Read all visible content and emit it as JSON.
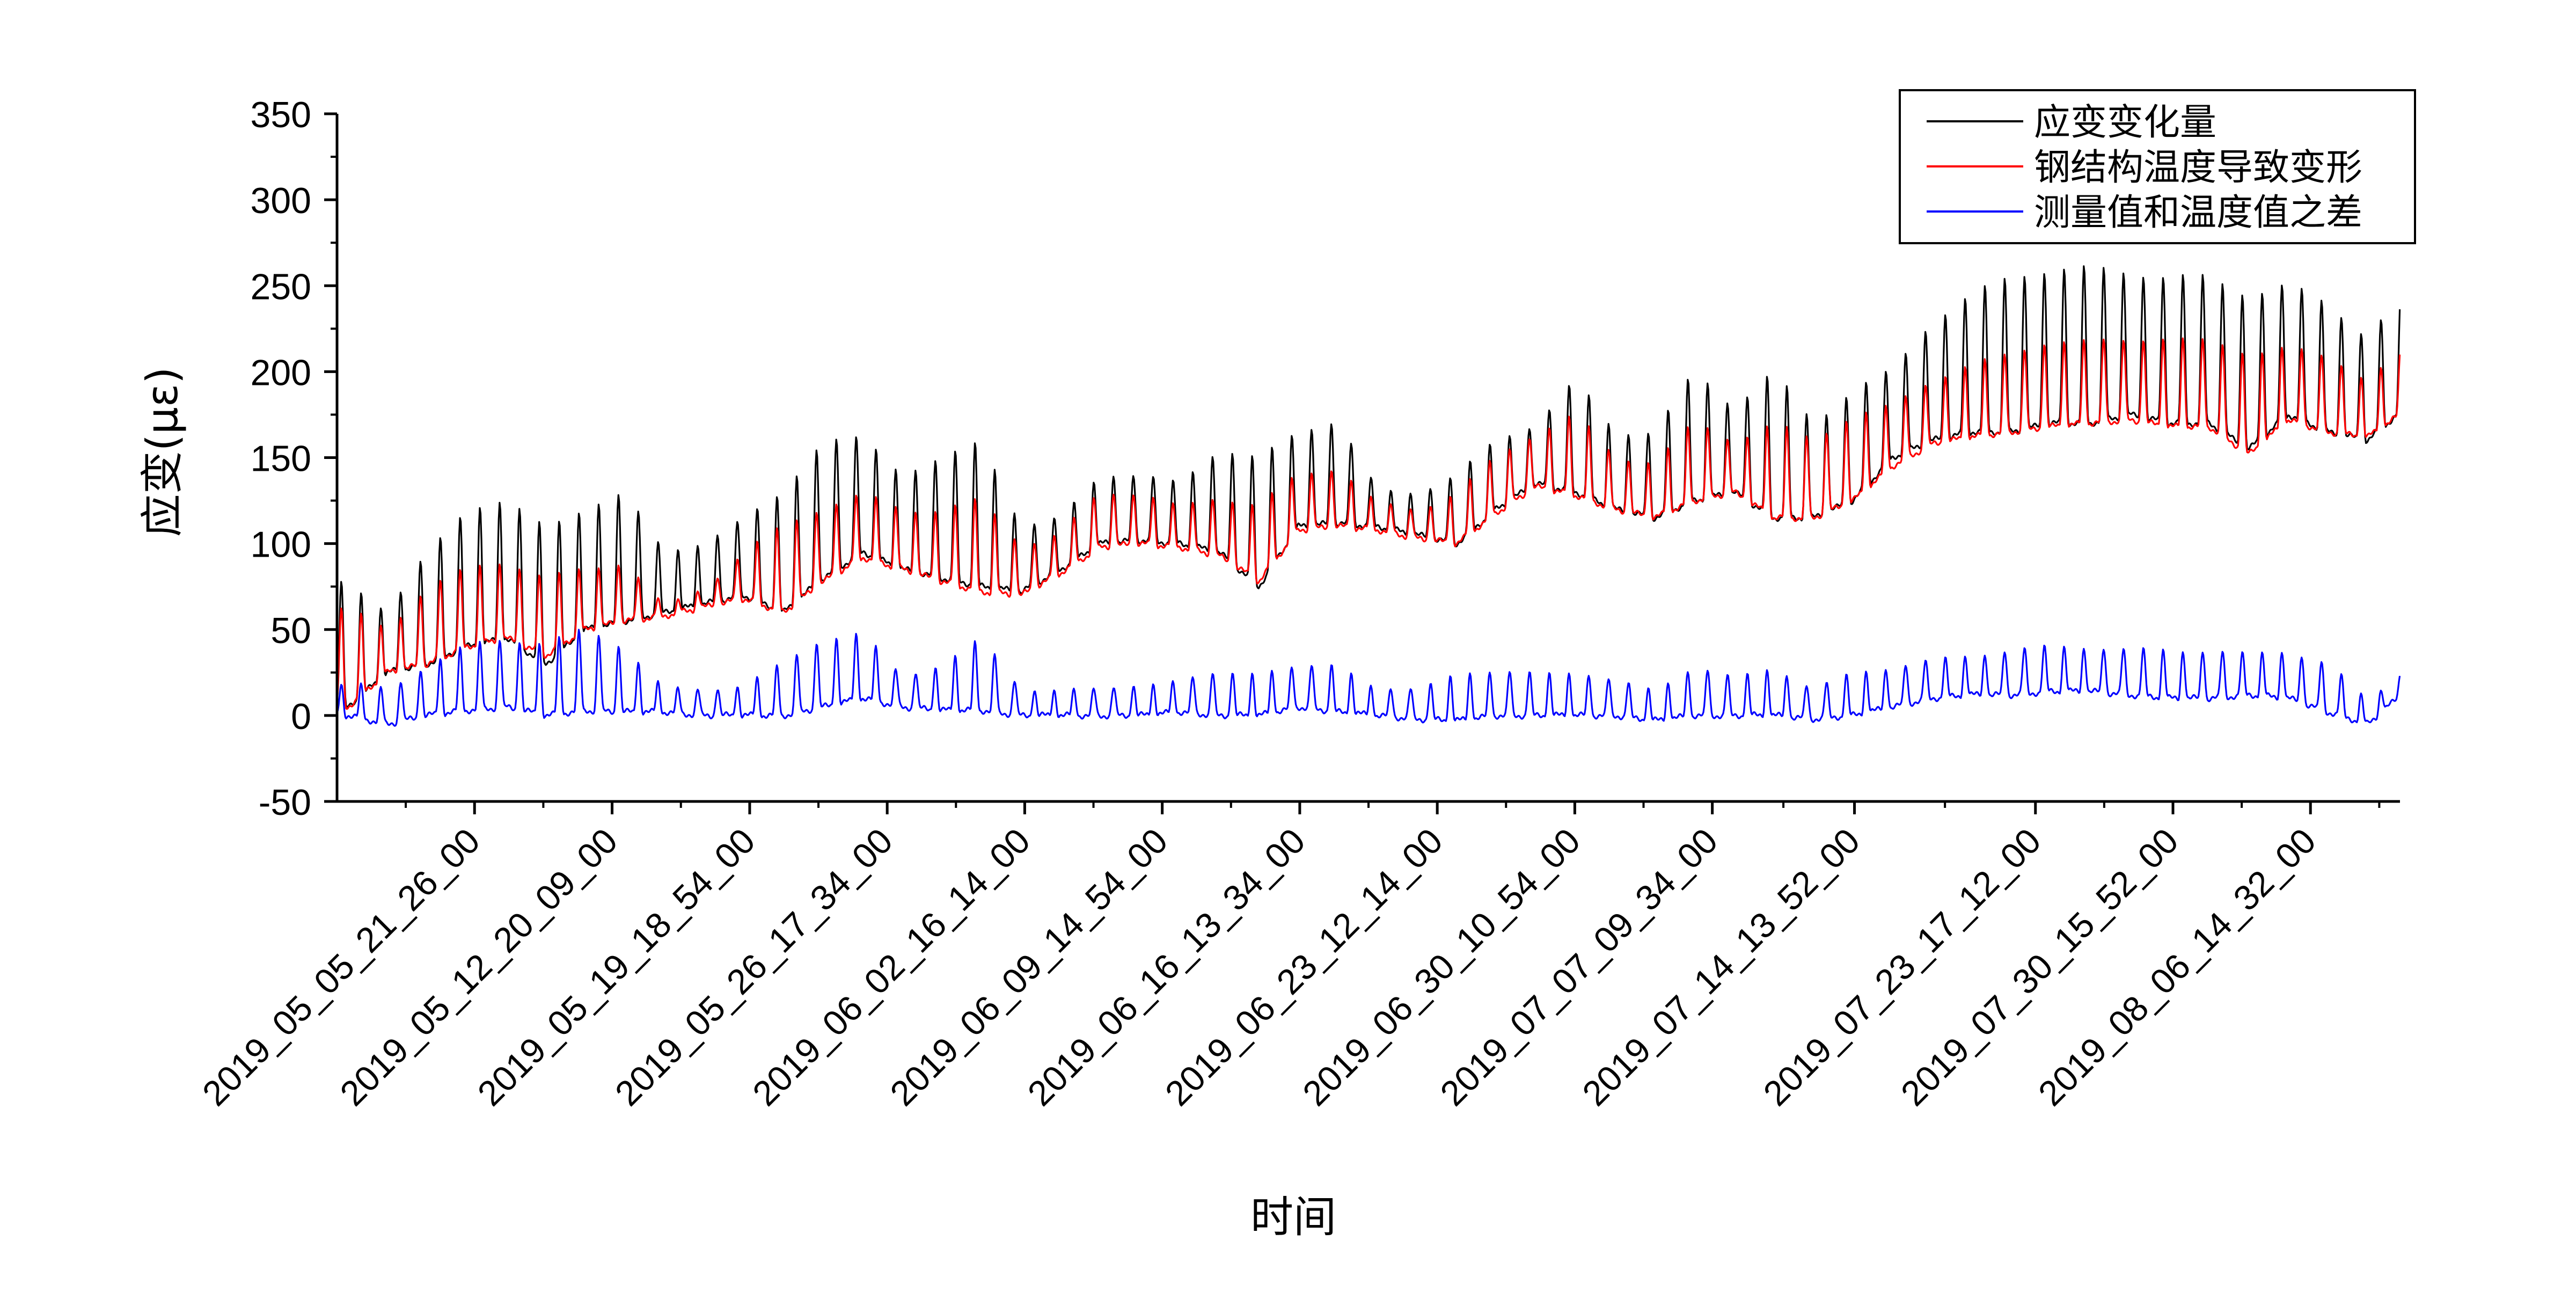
{
  "chart_data": {
    "type": "line",
    "title": "",
    "xlabel": "时间",
    "ylabel": "应变(με)",
    "ylim": [
      -50,
      350
    ],
    "yticks": [
      -50,
      0,
      50,
      100,
      150,
      200,
      250,
      300,
      350
    ],
    "x_range": [
      "2019_04_28_22_46_00",
      "2019_08_11_03_00_00"
    ],
    "x_tick_labels": [
      "2019_05_05_21_26_00",
      "2019_05_12_20_09_00",
      "2019_05_19_18_54_00",
      "2019_05_26_17_34_00",
      "2019_06_02_16_14_00",
      "2019_06_09_14_54_00",
      "2019_06_16_13_34_00",
      "2019_06_23_12_14_00",
      "2019_06_30_10_54_00",
      "2019_07_07_09_34_00",
      "2019_07_14_13_52_00",
      "2019_07_23_17_12_00",
      "2019_07_30_15_52_00",
      "2019_08_06_14_32_00"
    ],
    "grid": false,
    "legend_position": "top-right",
    "series": [
      {
        "name": "应变变化量",
        "color": "#000000",
        "x": [
          "2019_04_29",
          "2019_05_01",
          "2019_05_03",
          "2019_05_05",
          "2019_05_07",
          "2019_05_09",
          "2019_05_11",
          "2019_05_13",
          "2019_05_15",
          "2019_05_17",
          "2019_05_19",
          "2019_05_21",
          "2019_05_23",
          "2019_05_25",
          "2019_05_27",
          "2019_05_29",
          "2019_05_31",
          "2019_06_02",
          "2019_06_04",
          "2019_06_06",
          "2019_06_08",
          "2019_06_10",
          "2019_06_12",
          "2019_06_14",
          "2019_06_16",
          "2019_06_18",
          "2019_06_20",
          "2019_06_22",
          "2019_06_24",
          "2019_06_26",
          "2019_06_28",
          "2019_06_30",
          "2019_07_02",
          "2019_07_04",
          "2019_07_06",
          "2019_07_08",
          "2019_07_10",
          "2019_07_12",
          "2019_07_14",
          "2019_07_16",
          "2019_07_18",
          "2019_07_20",
          "2019_07_22",
          "2019_07_24",
          "2019_07_26",
          "2019_07_28",
          "2019_07_30",
          "2019_08_01",
          "2019_08_03",
          "2019_08_05",
          "2019_08_07",
          "2019_08_09",
          "2019_08_11"
        ],
        "trough": [
          5,
          25,
          30,
          40,
          45,
          30,
          50,
          55,
          60,
          65,
          70,
          60,
          80,
          95,
          85,
          80,
          75,
          72,
          85,
          100,
          102,
          100,
          95,
          75,
          110,
          112,
          110,
          105,
          100,
          120,
          135,
          130,
          120,
          115,
          125,
          130,
          115,
          115,
          125,
          150,
          160,
          165,
          165,
          170,
          170,
          175,
          170,
          170,
          155,
          175,
          165,
          160,
          180
        ],
        "peak": [
          78,
          60,
          95,
          120,
          125,
          110,
          120,
          130,
          95,
          100,
          115,
          130,
          160,
          162,
          140,
          150,
          160,
          110,
          115,
          140,
          140,
          135,
          155,
          150,
          165,
          172,
          130,
          130,
          140,
          160,
          170,
          195,
          165,
          165,
          200,
          180,
          200,
          170,
          190,
          200,
          230,
          245,
          255,
          260,
          260,
          258,
          255,
          255,
          245,
          250,
          240,
          220,
          248
        ]
      },
      {
        "name": "钢结构温度导致变形",
        "color": "#ff0000",
        "x": [
          "2019_04_29",
          "2019_05_01",
          "2019_05_03",
          "2019_05_05",
          "2019_05_07",
          "2019_05_09",
          "2019_05_11",
          "2019_05_13",
          "2019_05_15",
          "2019_05_17",
          "2019_05_19",
          "2019_05_21",
          "2019_05_23",
          "2019_05_25",
          "2019_05_27",
          "2019_05_29",
          "2019_05_31",
          "2019_06_02",
          "2019_06_04",
          "2019_06_06",
          "2019_06_08",
          "2019_06_10",
          "2019_06_12",
          "2019_06_14",
          "2019_06_16",
          "2019_06_18",
          "2019_06_20",
          "2019_06_22",
          "2019_06_24",
          "2019_06_26",
          "2019_06_28",
          "2019_06_30",
          "2019_07_02",
          "2019_07_04",
          "2019_07_06",
          "2019_07_08",
          "2019_07_10",
          "2019_07_12",
          "2019_07_14",
          "2019_07_16",
          "2019_07_18",
          "2019_07_20",
          "2019_07_22",
          "2019_07_24",
          "2019_07_26",
          "2019_07_28",
          "2019_07_30",
          "2019_08_01",
          "2019_08_03",
          "2019_08_05",
          "2019_08_07",
          "2019_08_09",
          "2019_08_11"
        ],
        "trough": [
          5,
          25,
          30,
          40,
          45,
          35,
          50,
          55,
          58,
          63,
          68,
          60,
          78,
          92,
          85,
          78,
          72,
          70,
          83,
          98,
          100,
          98,
          93,
          78,
          108,
          110,
          108,
          103,
          100,
          118,
          133,
          128,
          120,
          115,
          125,
          130,
          115,
          115,
          125,
          145,
          158,
          162,
          165,
          168,
          170,
          172,
          168,
          168,
          152,
          172,
          165,
          162,
          178
        ],
        "peak": [
          62,
          50,
          75,
          85,
          90,
          80,
          85,
          90,
          62,
          75,
          95,
          110,
          122,
          128,
          120,
          120,
          125,
          100,
          105,
          130,
          130,
          120,
          128,
          122,
          140,
          145,
          122,
          120,
          130,
          150,
          165,
          175,
          150,
          148,
          170,
          160,
          170,
          160,
          175,
          180,
          195,
          205,
          210,
          218,
          218,
          218,
          220,
          218,
          210,
          215,
          208,
          195,
          218
        ]
      },
      {
        "name": "测量值和温度值之差",
        "color": "#0000ff",
        "x": [
          "2019_04_29",
          "2019_05_01",
          "2019_05_03",
          "2019_05_05",
          "2019_05_07",
          "2019_05_09",
          "2019_05_11",
          "2019_05_13",
          "2019_05_15",
          "2019_05_17",
          "2019_05_19",
          "2019_05_21",
          "2019_05_23",
          "2019_05_25",
          "2019_05_27",
          "2019_05_29",
          "2019_05_31",
          "2019_06_02",
          "2019_06_04",
          "2019_06_06",
          "2019_06_08",
          "2019_06_10",
          "2019_06_12",
          "2019_06_14",
          "2019_06_16",
          "2019_06_18",
          "2019_06_20",
          "2019_06_22",
          "2019_06_24",
          "2019_06_26",
          "2019_06_28",
          "2019_06_30",
          "2019_07_02",
          "2019_07_04",
          "2019_07_06",
          "2019_07_08",
          "2019_07_10",
          "2019_07_12",
          "2019_07_14",
          "2019_07_16",
          "2019_07_18",
          "2019_07_20",
          "2019_07_22",
          "2019_07_24",
          "2019_07_26",
          "2019_07_28",
          "2019_07_30",
          "2019_08_01",
          "2019_08_03",
          "2019_08_05",
          "2019_08_07",
          "2019_08_09",
          "2019_08_11"
        ],
        "trough": [
          0,
          -5,
          0,
          3,
          5,
          0,
          3,
          2,
          2,
          0,
          0,
          0,
          5,
          10,
          5,
          3,
          3,
          0,
          0,
          0,
          0,
          2,
          0,
          0,
          5,
          2,
          0,
          -2,
          -3,
          0,
          0,
          0,
          0,
          -3,
          0,
          0,
          0,
          -2,
          0,
          5,
          10,
          12,
          12,
          14,
          14,
          12,
          10,
          10,
          12,
          10,
          2,
          -5,
          15
        ],
        "peak": [
          18,
          15,
          30,
          40,
          45,
          42,
          50,
          40,
          15,
          15,
          18,
          30,
          45,
          48,
          22,
          30,
          45,
          15,
          15,
          15,
          18,
          20,
          25,
          25,
          28,
          30,
          15,
          15,
          25,
          25,
          25,
          25,
          20,
          15,
          28,
          22,
          28,
          15,
          25,
          28,
          32,
          35,
          38,
          40,
          40,
          38,
          38,
          38,
          35,
          38,
          30,
          8,
          30
        ]
      }
    ]
  }
}
